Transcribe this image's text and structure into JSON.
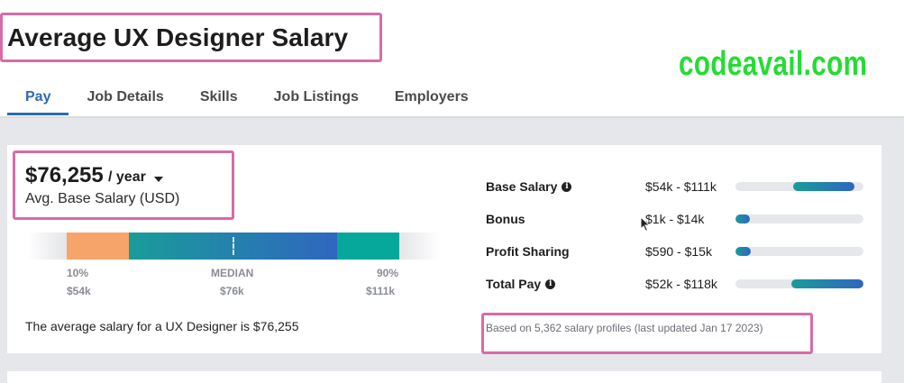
{
  "page": {
    "title": "Average UX Designer Salary",
    "watermark": "codeavail.com"
  },
  "tabs": [
    {
      "label": "Pay",
      "active": true
    },
    {
      "label": "Job Details",
      "active": false
    },
    {
      "label": "Skills",
      "active": false
    },
    {
      "label": "Job Listings",
      "active": false
    },
    {
      "label": "Employers",
      "active": false
    }
  ],
  "salary": {
    "amount": "$76,255",
    "period": "/ year",
    "caption": "Avg. Base Salary (USD)",
    "summary": "The average salary for a UX Designer is $76,255"
  },
  "distribution": {
    "low_pct": "10%",
    "low_value": "$54k",
    "median_label": "MEDIAN",
    "median_value": "$76k",
    "high_pct": "90%",
    "high_value": "$111k"
  },
  "pay_breakdown": [
    {
      "label": "Base Salary",
      "range": "$54k - $111k",
      "info": true,
      "fill_start": 0.45,
      "fill_end": 0.93
    },
    {
      "label": "Bonus",
      "range": "$1k - $14k",
      "info": false,
      "fill_start": 0.0,
      "fill_end": 0.11
    },
    {
      "label": "Profit Sharing",
      "range": "$590 - $15k",
      "info": false,
      "fill_start": 0.0,
      "fill_end": 0.12
    },
    {
      "label": "Total Pay",
      "range": "$52k - $118k",
      "info": true,
      "fill_start": 0.44,
      "fill_end": 1.0
    }
  ],
  "footnote": "Based on 5,362 salary profiles (last updated Jan 17 2023)",
  "colors": {
    "accent": "#2c6bb6",
    "highlight_border": "#d86ba7",
    "watermark": "#22dd33",
    "low_segment": "#f7a46b",
    "high_segment": "#05a89a"
  }
}
